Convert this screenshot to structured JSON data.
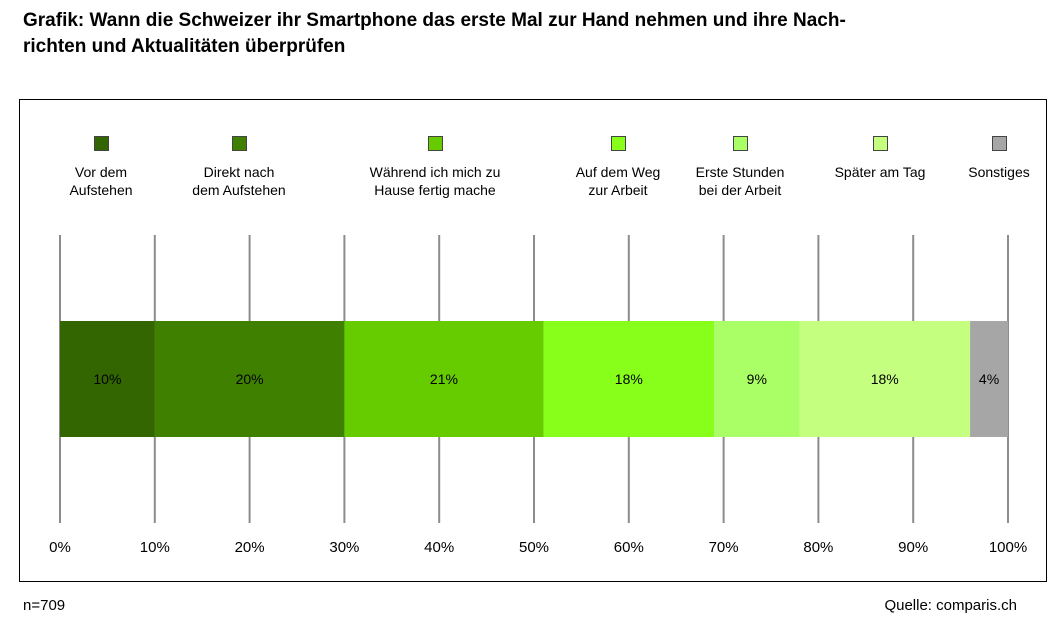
{
  "header": {
    "title": "Grafik: Wann die Schweizer ihr Smartphone das erste Mal zur Hand nehmen und ihre Nachrichten und Aktualitäten überprüfen",
    "title_line1": "Grafik: Wann die Schweizer ihr Smartphone das erste Mal zur Hand nehmen und ihre Nach-",
    "title_line2": "richten und Aktualitäten überprüfen"
  },
  "footer": {
    "sample": "n=709",
    "source": "Quelle: comparis.ch"
  },
  "chart_data": {
    "type": "bar",
    "orientation": "horizontal-stacked-100",
    "title": "",
    "xlabel": "",
    "ylabel": "",
    "xlim": [
      0,
      100
    ],
    "x_ticks": [
      "0%",
      "10%",
      "20%",
      "30%",
      "40%",
      "50%",
      "60%",
      "70%",
      "80%",
      "90%",
      "100%"
    ],
    "grid": "vertical",
    "legend_position": "top",
    "series": [
      {
        "name": "Vor dem Aufstehen",
        "label": "Vor dem\nAufstehen",
        "value": 10,
        "display": "10%",
        "color": "#336600"
      },
      {
        "name": "Direkt nach dem Aufstehen",
        "label": "Direkt nach\ndem Aufstehen",
        "value": 20,
        "display": "20%",
        "color": "#408000"
      },
      {
        "name": "Während ich mich zu Hause fertig mache",
        "label": "Während ich mich zu\nHause fertig mache",
        "value": 21,
        "display": "21%",
        "color": "#66cc00"
      },
      {
        "name": "Auf dem Weg zur Arbeit",
        "label": "Auf dem Weg\nzur Arbeit",
        "value": 18,
        "display": "18%",
        "color": "#88ff1a"
      },
      {
        "name": "Erste Stunden bei der Arbeit",
        "label": "Erste Stunden\nbei der Arbeit",
        "value": 9,
        "display": "9%",
        "color": "#aaff66"
      },
      {
        "name": "Später am Tag",
        "label": "Später am Tag",
        "value": 18,
        "display": "18%",
        "color": "#c4ff80"
      },
      {
        "name": "Sonstiges",
        "label": "Sonstiges",
        "value": 4,
        "display": "4%",
        "color": "#a6a6a6"
      }
    ]
  }
}
